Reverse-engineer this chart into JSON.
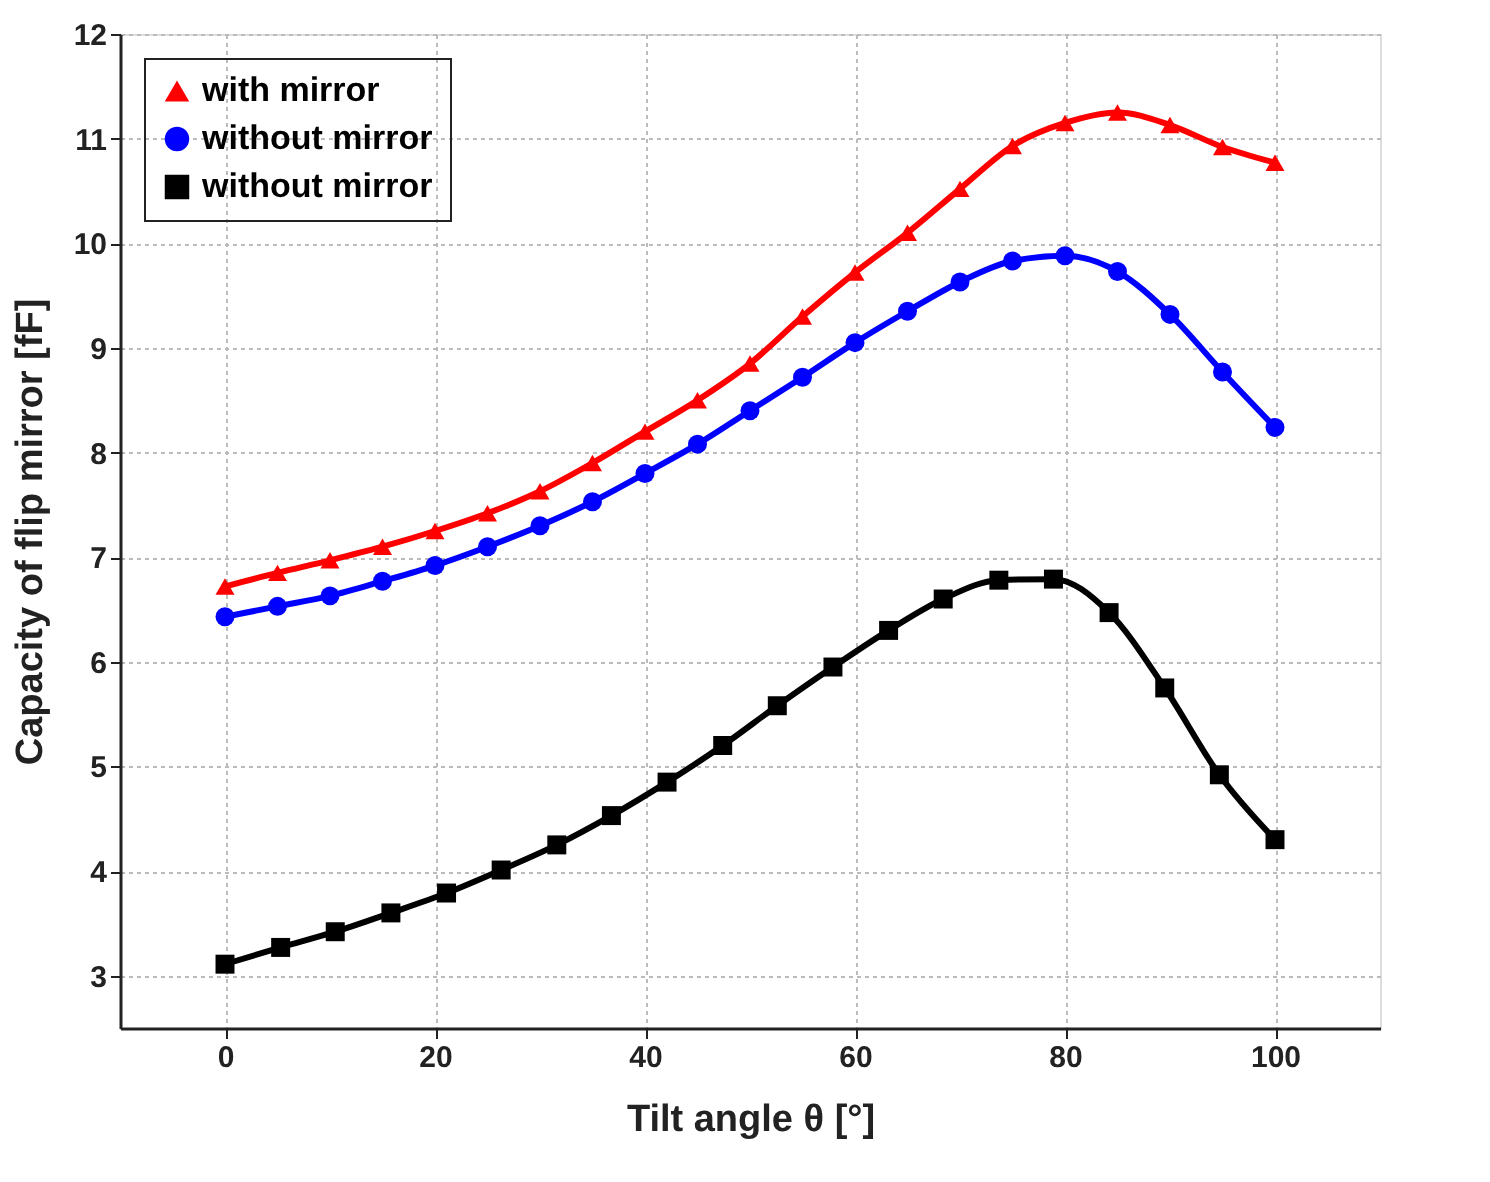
{
  "chart_data": {
    "type": "line",
    "xlabel": "Tilt angle θ [°]",
    "ylabel": "Capacity of flip mirror [fF]",
    "xlim": [
      -10,
      110
    ],
    "xticks": [
      0,
      20,
      40,
      60,
      80,
      100
    ],
    "ylim": [
      2.5,
      12
    ],
    "yticks": [
      3,
      4,
      5,
      6,
      7,
      8,
      9,
      10,
      11,
      12
    ],
    "grid": true,
    "legend": "top left",
    "line_style": "solid",
    "series": [
      {
        "name": "with mirror",
        "color": "#ff0000",
        "marker": "triangle",
        "x": [
          0,
          5,
          10,
          15,
          20,
          25,
          30,
          35,
          40,
          45,
          50,
          55,
          60,
          65,
          70,
          75,
          80,
          85,
          90,
          95,
          100
        ],
        "values": [
          6.72,
          6.85,
          6.97,
          7.1,
          7.25,
          7.42,
          7.63,
          7.9,
          8.2,
          8.5,
          8.85,
          9.3,
          9.72,
          10.1,
          10.52,
          10.93,
          11.15,
          11.25,
          11.13,
          10.92,
          10.77
        ]
      },
      {
        "name": "without mirror",
        "color": "#0000ff",
        "marker": "circle",
        "x": [
          0,
          5,
          10,
          15,
          20,
          25,
          30,
          35,
          40,
          45,
          50,
          55,
          60,
          65,
          70,
          75,
          80,
          85,
          90,
          95,
          100
        ],
        "values": [
          6.43,
          6.53,
          6.63,
          6.77,
          6.92,
          7.1,
          7.3,
          7.53,
          7.8,
          8.08,
          8.4,
          8.72,
          9.05,
          9.35,
          9.63,
          9.83,
          9.88,
          9.73,
          9.32,
          8.77,
          8.24
        ]
      },
      {
        "name": "without mirror",
        "color": "#000000",
        "marker": "square",
        "x": [
          0,
          5.3,
          10.5,
          15.8,
          21.1,
          26.3,
          31.6,
          36.8,
          42.1,
          47.4,
          52.6,
          57.9,
          63.2,
          68.4,
          73.7,
          78.9,
          84.2,
          89.5,
          94.7,
          100
        ],
        "values": [
          3.11,
          3.27,
          3.42,
          3.6,
          3.79,
          4.01,
          4.25,
          4.53,
          4.85,
          5.2,
          5.58,
          5.95,
          6.3,
          6.6,
          6.78,
          6.79,
          6.47,
          5.75,
          4.92,
          4.3
        ]
      }
    ]
  }
}
